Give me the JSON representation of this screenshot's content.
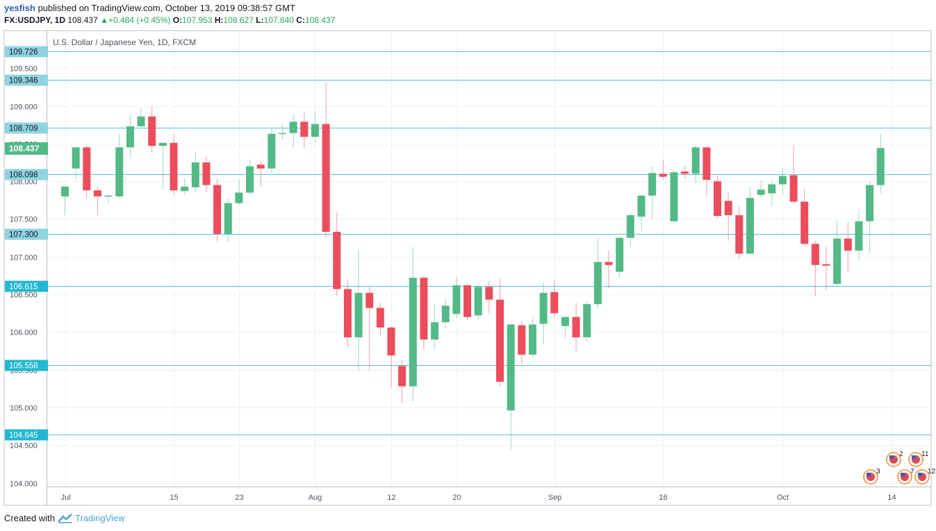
{
  "header": {
    "author": "yesfish",
    "published_text": "published on TradingView.com, October 13, 2019 09:38:57 GMT",
    "symbol": "FX:USDJPY, 1D",
    "last": "108.437",
    "change": "+0.484 (+0.45%)",
    "open_label": "O:",
    "open": "107.953",
    "high_label": "H:",
    "high": "108.627",
    "low_label": "L:",
    "low": "107.840",
    "close_label": "C:",
    "close": "108.437"
  },
  "footer": {
    "created_with": "Created with",
    "brand": "TradingView"
  },
  "colors": {
    "up": "#53b987",
    "down": "#eb4d5c",
    "hline": "#4fc3d3",
    "level_label_bg": "#8fd3e0",
    "last_label_bg": "#53b987",
    "grid": "#eef1f4"
  },
  "chart_data": {
    "type": "candlestick",
    "title": "U.S. Dollar / Japanese Yen, 1D, FXCM",
    "ylim": [
      103.95,
      110.0
    ],
    "y_ticks": [
      "104.000",
      "104.500",
      "105.000",
      "105.500",
      "106.000",
      "106.500",
      "107.000",
      "107.500",
      "108.000",
      "108.500",
      "109.000",
      "109.500"
    ],
    "x_ticks": [
      {
        "label": "Jul",
        "i": 0
      },
      {
        "label": "15",
        "i": 10
      },
      {
        "label": "23",
        "i": 16
      },
      {
        "label": "Aug",
        "i": 23
      },
      {
        "label": "12",
        "i": 30
      },
      {
        "label": "20",
        "i": 36
      },
      {
        "label": "Sep",
        "i": 45
      },
      {
        "label": "16",
        "i": 55
      },
      {
        "label": "Oct",
        "i": 66
      },
      {
        "label": "14",
        "i": 76
      }
    ],
    "horizontal_levels": [
      "109.726",
      "109.346",
      "108.709",
      "108.098",
      "107.300",
      "106.615",
      "105.558",
      "104.645"
    ],
    "last_price_label": "108.437",
    "event_markers": [
      {
        "label": "2",
        "i": 75
      },
      {
        "label": "11",
        "i": 77
      },
      {
        "label": "3",
        "i": 73
      },
      {
        "label": "7",
        "i": 76
      },
      {
        "label": "12",
        "i": 77
      }
    ],
    "candles": [
      [
        107.8,
        107.93,
        107.55,
        107.93
      ],
      [
        108.17,
        108.45,
        108.03,
        108.45
      ],
      [
        108.45,
        108.48,
        107.78,
        107.88
      ],
      [
        107.88,
        107.92,
        107.55,
        107.8
      ],
      [
        107.8,
        107.82,
        107.7,
        107.81
      ],
      [
        107.8,
        108.63,
        107.78,
        108.45
      ],
      [
        108.45,
        108.88,
        108.3,
        108.73
      ],
      [
        108.73,
        108.97,
        108.72,
        108.86
      ],
      [
        108.86,
        108.99,
        108.38,
        108.47
      ],
      [
        108.47,
        108.52,
        107.88,
        108.51
      ],
      [
        108.51,
        108.62,
        107.82,
        107.88
      ],
      [
        107.87,
        108.04,
        107.82,
        107.93
      ],
      [
        107.92,
        108.38,
        107.85,
        108.25
      ],
      [
        108.25,
        108.33,
        107.85,
        107.95
      ],
      [
        107.95,
        108.03,
        107.2,
        107.3
      ],
      [
        107.3,
        107.78,
        107.2,
        107.71
      ],
      [
        107.71,
        108.03,
        107.68,
        107.85
      ],
      [
        107.85,
        108.29,
        107.82,
        108.2
      ],
      [
        108.22,
        108.27,
        107.93,
        108.17
      ],
      [
        108.17,
        108.7,
        108.12,
        108.63
      ],
      [
        108.63,
        108.76,
        108.55,
        108.64
      ],
      [
        108.64,
        108.89,
        108.44,
        108.79
      ],
      [
        108.79,
        108.92,
        108.44,
        108.59
      ],
      [
        108.59,
        108.92,
        108.52,
        108.76
      ],
      [
        108.76,
        109.32,
        107.25,
        107.33
      ],
      [
        107.33,
        107.59,
        106.48,
        106.57
      ],
      [
        106.57,
        106.69,
        105.8,
        105.93
      ],
      [
        105.93,
        107.1,
        105.49,
        106.52
      ],
      [
        106.52,
        106.6,
        105.49,
        106.32
      ],
      [
        106.32,
        106.39,
        105.95,
        106.06
      ],
      [
        106.06,
        106.07,
        105.26,
        105.69
      ],
      [
        105.55,
        105.63,
        105.06,
        105.28
      ],
      [
        105.28,
        107.13,
        105.08,
        106.72
      ],
      [
        106.72,
        106.74,
        105.76,
        105.9
      ],
      [
        105.9,
        106.38,
        105.77,
        106.13
      ],
      [
        106.13,
        106.45,
        106.04,
        106.35
      ],
      [
        106.24,
        106.72,
        106.19,
        106.62
      ],
      [
        106.62,
        106.64,
        106.16,
        106.2
      ],
      [
        106.22,
        106.63,
        106.17,
        106.6
      ],
      [
        106.6,
        106.68,
        106.25,
        106.43
      ],
      [
        106.43,
        106.71,
        105.28,
        105.34
      ],
      [
        104.96,
        106.12,
        104.43,
        106.1
      ],
      [
        106.09,
        106.14,
        105.57,
        105.7
      ],
      [
        105.7,
        106.2,
        105.66,
        106.1
      ],
      [
        106.11,
        106.66,
        105.83,
        106.52
      ],
      [
        106.53,
        106.69,
        106.2,
        106.25
      ],
      [
        106.08,
        106.2,
        105.9,
        106.2
      ],
      [
        106.2,
        106.39,
        105.74,
        105.93
      ],
      [
        105.93,
        106.4,
        105.87,
        106.37
      ],
      [
        106.37,
        107.24,
        106.32,
        106.93
      ],
      [
        106.93,
        107.08,
        106.58,
        106.89
      ],
      [
        106.8,
        107.27,
        106.72,
        107.25
      ],
      [
        107.25,
        107.57,
        107.13,
        107.55
      ],
      [
        107.53,
        107.82,
        107.34,
        107.81
      ],
      [
        107.81,
        108.2,
        107.49,
        108.11
      ],
      [
        108.1,
        108.28,
        108.02,
        108.06
      ],
      [
        107.47,
        108.15,
        107.45,
        108.12
      ],
      [
        108.13,
        108.21,
        108.04,
        108.1
      ],
      [
        108.1,
        108.48,
        107.98,
        108.45
      ],
      [
        108.45,
        108.47,
        107.81,
        108.02
      ],
      [
        108.0,
        108.07,
        107.51,
        107.54
      ],
      [
        107.74,
        107.85,
        107.21,
        107.55
      ],
      [
        107.55,
        107.67,
        106.97,
        107.04
      ],
      [
        107.04,
        107.93,
        107.03,
        107.78
      ],
      [
        107.82,
        108.01,
        107.79,
        107.89
      ],
      [
        107.84,
        108.02,
        107.67,
        107.96
      ],
      [
        107.96,
        108.18,
        107.83,
        108.07
      ],
      [
        108.08,
        108.48,
        107.71,
        107.73
      ],
      [
        107.73,
        107.9,
        107.13,
        107.17
      ],
      [
        107.17,
        107.21,
        106.48,
        106.89
      ],
      [
        106.9,
        107.14,
        106.56,
        106.88
      ],
      [
        106.64,
        107.48,
        106.62,
        107.24
      ],
      [
        107.24,
        107.46,
        106.8,
        107.08
      ],
      [
        107.08,
        107.63,
        106.95,
        107.47
      ],
      [
        107.47,
        108.0,
        107.04,
        107.95
      ],
      [
        107.95,
        108.63,
        107.84,
        108.44
      ]
    ]
  }
}
